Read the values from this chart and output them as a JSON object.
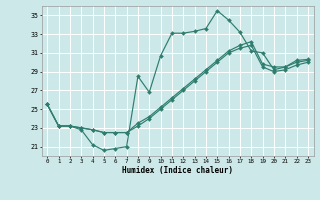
{
  "xlabel": "Humidex (Indice chaleur)",
  "xlim": [
    -0.5,
    23.5
  ],
  "ylim": [
    20.0,
    36.0
  ],
  "yticks": [
    21,
    23,
    25,
    27,
    29,
    31,
    33,
    35
  ],
  "xticks": [
    0,
    1,
    2,
    3,
    4,
    5,
    6,
    7,
    8,
    9,
    10,
    11,
    12,
    13,
    14,
    15,
    16,
    17,
    18,
    19,
    20,
    21,
    22,
    23
  ],
  "bg_color": "#cce8e8",
  "grid_color": "#ffffff",
  "line_color": "#2e7d6e",
  "line1_x": [
    0,
    1,
    2,
    3,
    4,
    5,
    6,
    7,
    8,
    9,
    10,
    11,
    12,
    13,
    14,
    15,
    16,
    17,
    18,
    19,
    20,
    21,
    22,
    23
  ],
  "line1_y": [
    25.5,
    23.2,
    23.2,
    22.8,
    21.2,
    20.6,
    20.8,
    21.0,
    28.5,
    26.8,
    30.7,
    33.1,
    33.1,
    33.3,
    33.6,
    35.5,
    34.5,
    33.2,
    31.2,
    31.0,
    29.2,
    29.5,
    30.2,
    30.3
  ],
  "line2_x": [
    0,
    1,
    2,
    3,
    4,
    5,
    6,
    7,
    8,
    9,
    10,
    11,
    12,
    13,
    14,
    15,
    16,
    17,
    18,
    19,
    20,
    21,
    22,
    23
  ],
  "line2_y": [
    25.5,
    23.2,
    23.2,
    23.0,
    22.8,
    22.5,
    22.5,
    22.5,
    23.5,
    24.2,
    25.2,
    26.2,
    27.2,
    28.2,
    29.2,
    30.2,
    31.2,
    31.8,
    32.2,
    29.8,
    29.5,
    29.5,
    30.0,
    30.2
  ],
  "line3_x": [
    0,
    1,
    2,
    3,
    4,
    5,
    6,
    7,
    8,
    9,
    10,
    11,
    12,
    13,
    14,
    15,
    16,
    17,
    18,
    19,
    20,
    21,
    22,
    23
  ],
  "line3_y": [
    25.5,
    23.2,
    23.2,
    23.0,
    22.8,
    22.5,
    22.5,
    22.5,
    23.2,
    24.0,
    25.0,
    26.0,
    27.0,
    28.0,
    29.0,
    30.0,
    31.0,
    31.5,
    31.8,
    29.5,
    29.0,
    29.2,
    29.7,
    30.0
  ]
}
